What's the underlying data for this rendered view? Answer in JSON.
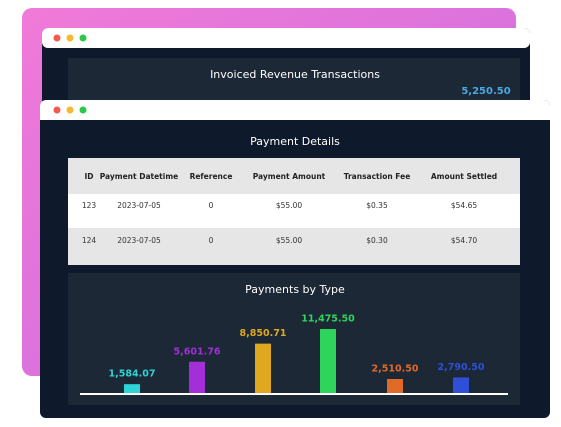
{
  "back_window": {
    "title": "Invoiced Revenue Transactions",
    "value_label": "5,250.50"
  },
  "table": {
    "title": "Payment Details",
    "columns": [
      "ID",
      "Payment Datetime",
      "Reference",
      "Payment Amount",
      "Transaction Fee",
      "Amount Settled"
    ],
    "rows": [
      [
        "123",
        "2023-07-05",
        "0",
        "$55.00",
        "$0.35",
        "$54.65"
      ],
      [
        "124",
        "2023-07-05",
        "0",
        "$55.00",
        "$0.30",
        "$54.70"
      ]
    ]
  },
  "chart_data": {
    "type": "bar",
    "title": "Payments by Type",
    "values": [
      1584.07,
      5601.76,
      8850.71,
      11475.5,
      2510.5,
      2790.5
    ],
    "value_labels": [
      "1,584.07",
      "5,601.76",
      "8,850.71",
      "11,475.50",
      "2,510.50",
      "2,790.50"
    ],
    "colors": [
      "#2ed3d8",
      "#a22fd8",
      "#e0a81e",
      "#2fd45a",
      "#e06a28",
      "#2f4fd8"
    ]
  }
}
